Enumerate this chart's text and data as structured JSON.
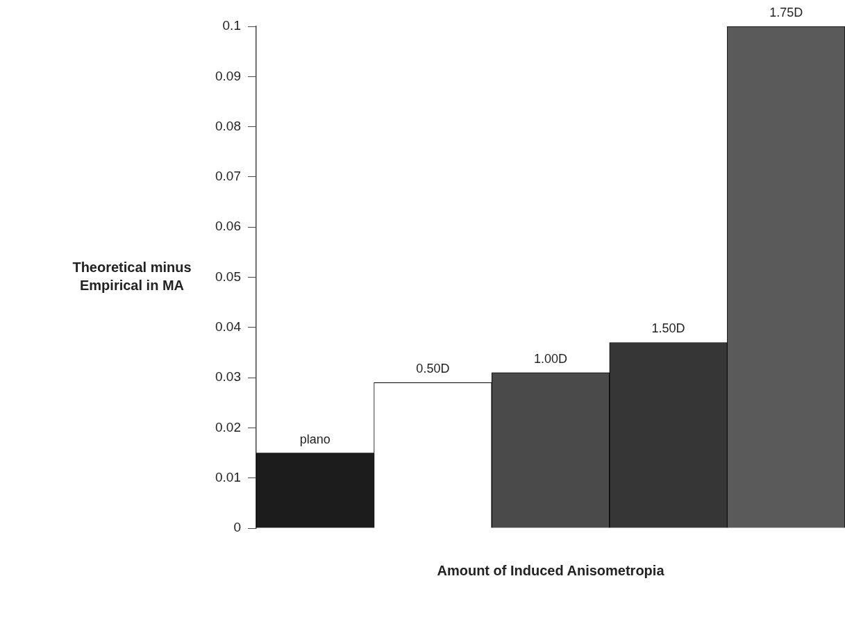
{
  "chart_data": {
    "type": "bar",
    "xlabel": "Amount of Induced Anisometropia",
    "ylabel": "Theoretical minus Empirical in MA",
    "categories": [
      "plano",
      "0.50D",
      "1.00D",
      "1.50D",
      "1.75D"
    ],
    "values": [
      0.015,
      0.029,
      0.031,
      0.037,
      0.1
    ],
    "colors": [
      "#1c1c1c",
      "#ffffff",
      "#4a4a4a",
      "#363636",
      "#5a5a5a"
    ],
    "ylim": [
      0,
      0.1
    ],
    "yticks": [
      0,
      0.01,
      0.02,
      0.03,
      0.04,
      0.05,
      0.06,
      0.07,
      0.08,
      0.09,
      0.1
    ],
    "tick_labels": "y",
    "grid": false,
    "legend": false
  }
}
